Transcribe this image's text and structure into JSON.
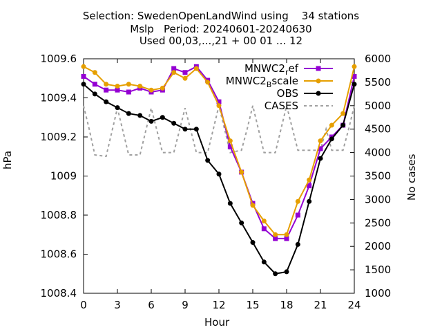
{
  "chart_data": {
    "type": "line",
    "title_lines": [
      "Selection: SwedenOpenLandWind using    34 stations",
      "Mslp   Period: 20240601-20240630",
      "Used 00,03,...,21 + 00 01 ... 12"
    ],
    "xlabel": "Hour",
    "ylabel": "hPa",
    "y2label": "No cases",
    "xlim": [
      0,
      24
    ],
    "ylim": [
      1008.4,
      1009.6
    ],
    "y2lim": [
      1000,
      6000
    ],
    "xticks": [
      "0",
      "3",
      "6",
      "9",
      "12",
      "15",
      "18",
      "21",
      "24"
    ],
    "yticks": [
      "1008.4",
      "1008.6",
      "1008.8",
      "1009",
      "1009.2",
      "1009.4",
      "1009.6"
    ],
    "y2ticks": [
      "1000",
      "1500",
      "2000",
      "2500",
      "3000",
      "3500",
      "4000",
      "4500",
      "5000",
      "5500",
      "6000"
    ],
    "x": [
      0,
      1,
      2,
      3,
      4,
      5,
      6,
      7,
      8,
      9,
      10,
      11,
      12,
      13,
      14,
      15,
      16,
      17,
      18,
      19,
      20,
      21,
      22,
      23,
      24
    ],
    "series": [
      {
        "name": "MNWC2_ref",
        "legend_main": "MNWC2",
        "legend_sub": "r",
        "legend_rest": "ef",
        "color": "#9400d3",
        "marker": "square",
        "values": [
          1009.51,
          1009.47,
          1009.44,
          1009.44,
          1009.43,
          1009.45,
          1009.43,
          1009.44,
          1009.55,
          1009.53,
          1009.56,
          1009.49,
          1009.38,
          1009.15,
          1009.02,
          1008.86,
          1008.73,
          1008.68,
          1008.68,
          1008.8,
          1008.95,
          1009.14,
          1009.2,
          1009.26,
          1009.51
        ]
      },
      {
        "name": "MNWC2_Bscale",
        "legend_main": "MNWC2",
        "legend_sub": "B",
        "legend_rest": "scale",
        "color": "#e69f00",
        "marker": "circle",
        "values": [
          1009.56,
          1009.53,
          1009.47,
          1009.46,
          1009.47,
          1009.46,
          1009.44,
          1009.45,
          1009.53,
          1009.5,
          1009.55,
          1009.48,
          1009.36,
          1009.18,
          1009.02,
          1008.85,
          1008.77,
          1008.7,
          1008.7,
          1008.87,
          1008.98,
          1009.18,
          1009.26,
          1009.32,
          1009.56
        ]
      },
      {
        "name": "OBS",
        "legend_main": "OBS",
        "legend_sub": "",
        "legend_rest": "",
        "color": "#000000",
        "marker": "circle",
        "values": [
          1009.47,
          1009.42,
          1009.38,
          1009.35,
          1009.32,
          1009.31,
          1009.28,
          1009.3,
          1009.27,
          1009.24,
          1009.24,
          1009.08,
          1009.01,
          1008.86,
          1008.76,
          1008.66,
          1008.56,
          1008.5,
          1008.51,
          1008.65,
          1008.87,
          1009.09,
          1009.19,
          1009.26,
          1009.47
        ]
      }
    ],
    "cases": {
      "name": "CASES",
      "axis": "y2",
      "color": "#a0a0a0",
      "dash": "dashed",
      "x": [
        0,
        0.5,
        1,
        2,
        3,
        4,
        5,
        6,
        7,
        8,
        9,
        10,
        11,
        11.5,
        12,
        13,
        14,
        14.5,
        15,
        16,
        17,
        18,
        19,
        20,
        21,
        21.5,
        22,
        23,
        23.5,
        24
      ],
      "values": [
        5000,
        4500,
        3950,
        3920,
        4950,
        3950,
        3950,
        4950,
        4000,
        4000,
        4950,
        4000,
        4000,
        4500,
        5000,
        4000,
        4050,
        4500,
        5000,
        4000,
        4000,
        5000,
        4050,
        4050,
        4050,
        4500,
        4050,
        4050,
        4500,
        5000
      ]
    },
    "legend_position": "top-right",
    "grid": false
  }
}
